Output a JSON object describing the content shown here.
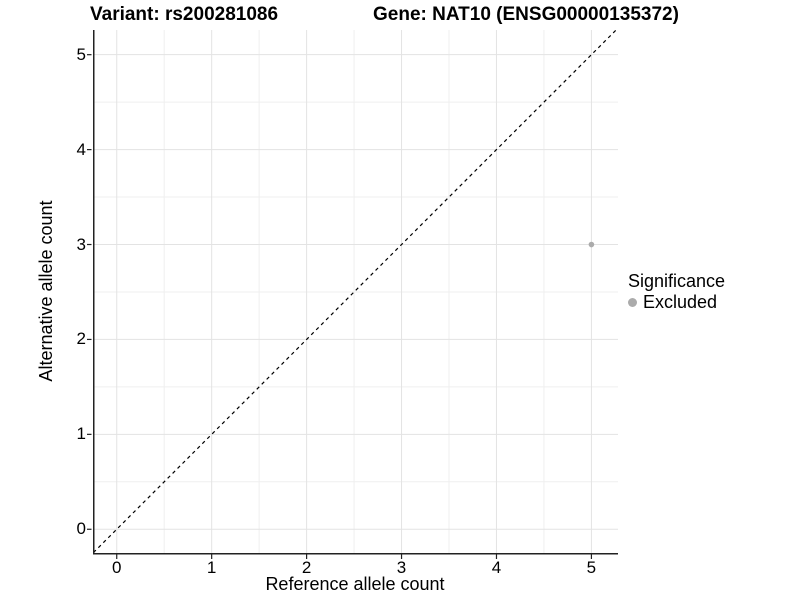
{
  "chart_data": {
    "type": "scatter",
    "title_variant": "Variant: rs200281086",
    "title_gene": "Gene: NAT10 (ENSG00000135372)",
    "xlabel": "Reference allele count",
    "ylabel": "Alternative allele count",
    "xlim": [
      -0.25,
      5.28
    ],
    "ylim": [
      -0.25,
      5.26
    ],
    "xticks": [
      0,
      1,
      2,
      3,
      4,
      5
    ],
    "yticks": [
      0,
      1,
      2,
      3,
      4,
      5
    ],
    "minor_xticks": [
      0.5,
      1.5,
      2.5,
      3.5,
      4.5
    ],
    "minor_yticks": [
      0.5,
      1.5,
      2.5,
      3.5,
      4.5
    ],
    "grid": "major and minor, light gray, on white panel",
    "series": [
      {
        "name": "Excluded",
        "color": "#ababab",
        "points": [
          {
            "x": 5,
            "y": 3
          }
        ]
      }
    ],
    "reference_line": {
      "kind": "identity y = x",
      "slope": 1,
      "intercept": 0,
      "linestyle": "dashed",
      "color": "#000000"
    },
    "legend": {
      "title": "Significance",
      "position": "right",
      "items": [
        {
          "label": "Excluded",
          "color": "#ababab"
        }
      ]
    }
  },
  "colors": {
    "background": "#ffffff",
    "panel_background": "#ffffff",
    "grid_major": "#e3e3e3",
    "grid_minor": "#efefef",
    "axis_line": "#222222",
    "tick_mark": "#222222",
    "text": "#000000",
    "point": "#ababab",
    "dashed_line": "#000000"
  }
}
